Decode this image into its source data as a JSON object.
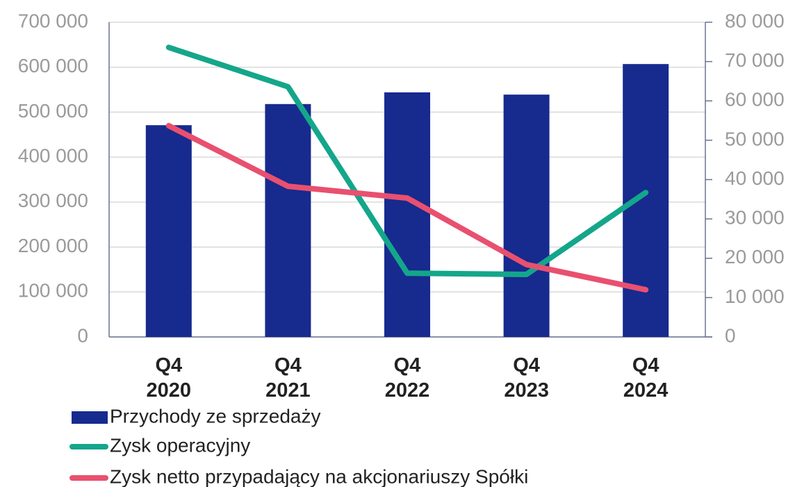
{
  "chart_data": {
    "type": "bar",
    "categories": [
      "Q4 2020",
      "Q4 2021",
      "Q4 2022",
      "Q4 2023",
      "Q4 2024"
    ],
    "series": [
      {
        "name": "Przychody ze sprzedaży",
        "type": "bar",
        "axis": "y",
        "color": "#172a8e",
        "values": [
          471000,
          518000,
          544000,
          539000,
          607000
        ]
      },
      {
        "name": "Zysk operacyjny",
        "type": "line",
        "axis": "y2",
        "color": "#14a68b",
        "values": [
          73600,
          63600,
          16200,
          15900,
          36700
        ]
      },
      {
        "name": "Zysk netto przypadający na akcjonariuszy Spółki",
        "type": "line",
        "axis": "y2",
        "color": "#e9506f",
        "values": [
          53700,
          38300,
          35300,
          18400,
          12000
        ]
      }
    ],
    "ylim": [
      0,
      700000
    ],
    "yticks": [
      0,
      {
        "value": 100000,
        "label": "100 000"
      },
      {
        "value": 200000,
        "label": "200 000"
      },
      {
        "value": 300000,
        "label": "300 000"
      },
      {
        "value": 400000,
        "label": "400 000"
      },
      {
        "value": 500000,
        "label": "500 000"
      },
      {
        "value": 600000,
        "label": "600 000"
      },
      {
        "value": 700000,
        "label": "700 000"
      }
    ],
    "y2lim": [
      0,
      80000
    ],
    "y2ticks": [
      0,
      {
        "value": 10000,
        "label": "10 000"
      },
      {
        "value": 20000,
        "label": "20 000"
      },
      {
        "value": 30000,
        "label": "30 000"
      },
      {
        "value": 40000,
        "label": "40 000"
      },
      {
        "value": 50000,
        "label": "50 000"
      },
      {
        "value": 60000,
        "label": "60 000"
      },
      {
        "value": 70000,
        "label": "70 000"
      },
      {
        "value": 80000,
        "label": "80 000"
      }
    ],
    "grid": true
  }
}
